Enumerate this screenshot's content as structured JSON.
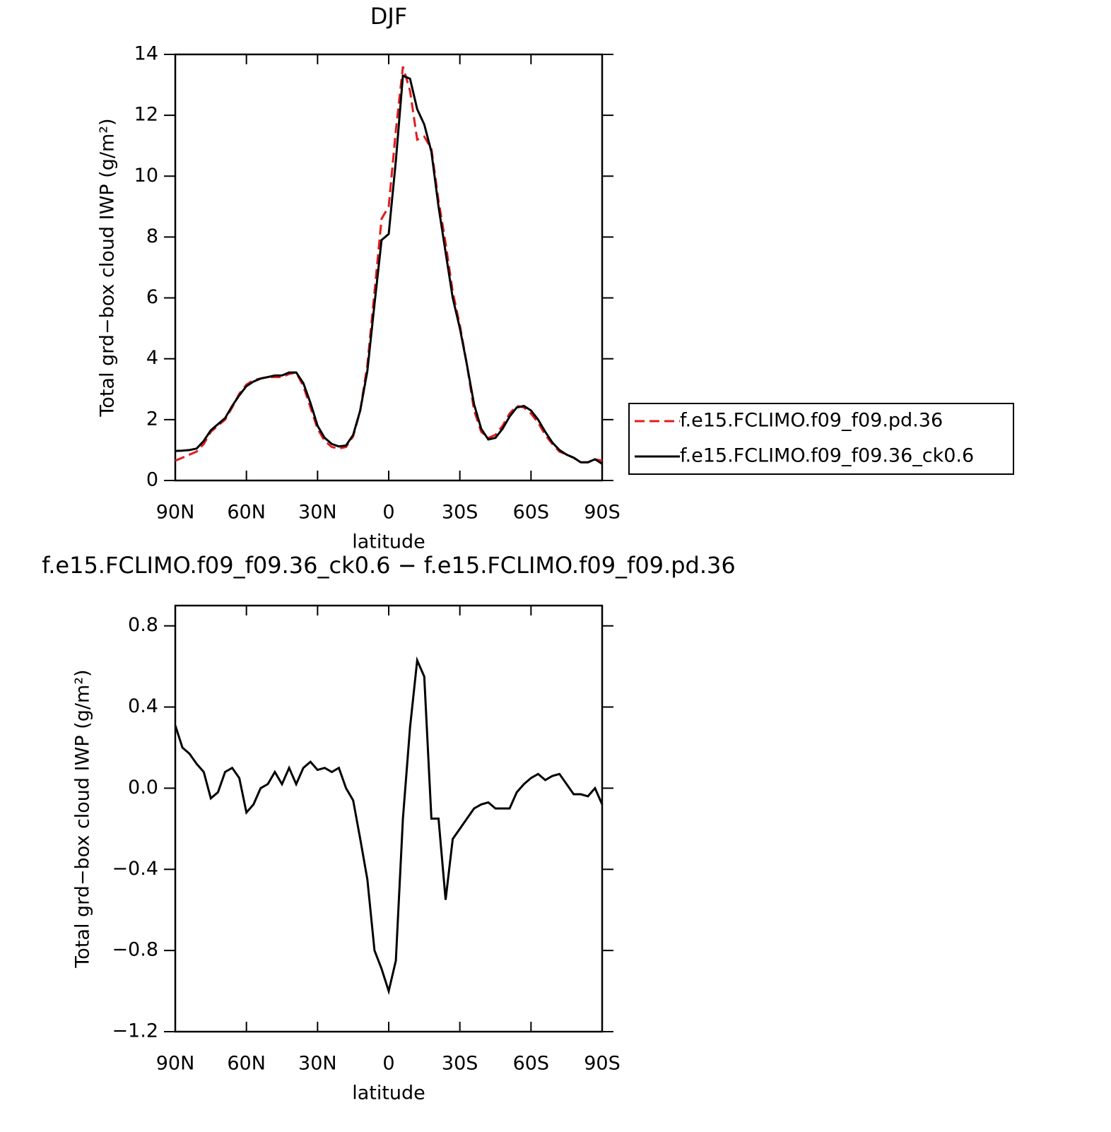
{
  "chart_data": [
    {
      "type": "line",
      "title": "DJF",
      "xlabel": "latitude",
      "ylabel": "Total grd−box cloud IWP (g/m²)",
      "x": [
        90,
        87,
        84,
        81,
        78,
        75,
        72,
        69,
        66,
        63,
        60,
        57,
        54,
        51,
        48,
        45,
        42,
        39,
        36,
        33,
        30,
        27,
        24,
        21,
        18,
        15,
        12,
        9,
        6,
        3,
        0,
        -3,
        -6,
        -9,
        -12,
        -15,
        -18,
        -21,
        -24,
        -27,
        -30,
        -33,
        -36,
        -39,
        -42,
        -45,
        -48,
        -51,
        -54,
        -57,
        -60,
        -63,
        -66,
        -69,
        -72,
        -75,
        -78,
        -81,
        -84,
        -87,
        -90
      ],
      "series": [
        {
          "name": "f.e15.FCLIMO.f09_f09.pd.36",
          "color": "#e41a1c",
          "dash": true,
          "values": [
            0.65,
            0.75,
            0.85,
            0.95,
            1.2,
            1.6,
            1.8,
            2.0,
            2.4,
            2.85,
            3.15,
            3.3,
            3.35,
            3.4,
            3.4,
            3.4,
            3.5,
            3.55,
            3.1,
            2.4,
            1.7,
            1.3,
            1.1,
            1.05,
            1.1,
            1.45,
            2.3,
            3.8,
            6.2,
            8.6,
            9.0,
            11.5,
            13.6,
            12.8,
            11.2,
            11.3,
            10.9,
            9.2,
            7.8,
            6.2,
            5.1,
            3.8,
            2.3,
            1.6,
            1.4,
            1.5,
            1.8,
            2.2,
            2.45,
            2.4,
            2.2,
            1.9,
            1.5,
            1.2,
            0.95,
            0.85,
            0.75,
            0.6,
            0.6,
            0.7,
            0.65
          ]
        },
        {
          "name": "f.e15.FCLIMO.f09_f09.36_ck0.6",
          "color": "#000000",
          "dash": false,
          "values": [
            0.97,
            0.98,
            1.0,
            1.05,
            1.3,
            1.65,
            1.85,
            2.05,
            2.45,
            2.8,
            3.1,
            3.25,
            3.35,
            3.4,
            3.45,
            3.45,
            3.55,
            3.55,
            3.2,
            2.55,
            1.8,
            1.4,
            1.2,
            1.12,
            1.15,
            1.5,
            2.3,
            3.6,
            5.8,
            7.9,
            8.1,
            10.5,
            13.3,
            13.2,
            12.2,
            11.7,
            10.8,
            9.0,
            7.5,
            6.0,
            5.0,
            3.8,
            2.5,
            1.7,
            1.35,
            1.4,
            1.7,
            2.1,
            2.4,
            2.45,
            2.3,
            2.0,
            1.6,
            1.25,
            1.0,
            0.85,
            0.75,
            0.6,
            0.6,
            0.7,
            0.55
          ]
        }
      ],
      "xlim": [
        90,
        -90
      ],
      "xticks": [
        {
          "value": 90,
          "label": "90N"
        },
        {
          "value": 60,
          "label": "60N"
        },
        {
          "value": 30,
          "label": "30N"
        },
        0,
        {
          "value": -30,
          "label": "30S"
        },
        {
          "value": -60,
          "label": "60S"
        },
        {
          "value": -90,
          "label": "90S"
        }
      ],
      "ylim": [
        0,
        14
      ],
      "yticks": [
        0,
        2,
        4,
        6,
        8,
        10,
        12,
        14
      ],
      "legend": "right"
    },
    {
      "type": "line",
      "title": "f.e15.FCLIMO.f09_f09.36_ck0.6 − f.e15.FCLIMO.f09_f09.pd.36",
      "xlabel": "latitude",
      "ylabel": "Total grd−box cloud IWP (g/m²)",
      "x": [
        90,
        87,
        84,
        81,
        78,
        75,
        72,
        69,
        66,
        63,
        60,
        57,
        54,
        51,
        48,
        45,
        42,
        39,
        36,
        33,
        30,
        27,
        24,
        21,
        18,
        15,
        12,
        9,
        6,
        3,
        0,
        -3,
        -6,
        -9,
        -12,
        -15,
        -18,
        -21,
        -24,
        -27,
        -30,
        -33,
        -36,
        -39,
        -42,
        -45,
        -48,
        -51,
        -54,
        -57,
        -60,
        -63,
        -66,
        -69,
        -72,
        -75,
        -78,
        -81,
        -84,
        -87,
        -90
      ],
      "series": [
        {
          "color": "#000000",
          "dash": false,
          "values": [
            0.31,
            0.2,
            0.17,
            0.12,
            0.08,
            -0.05,
            -0.02,
            0.08,
            0.1,
            0.05,
            -0.12,
            -0.08,
            0.0,
            0.02,
            0.08,
            0.02,
            0.1,
            0.02,
            0.1,
            0.13,
            0.09,
            0.1,
            0.08,
            0.1,
            0.0,
            -0.06,
            -0.25,
            -0.45,
            -0.8,
            -0.89,
            -1.0,
            -0.85,
            -0.15,
            0.3,
            0.63,
            0.55,
            -0.15,
            -0.15,
            -0.55,
            -0.25,
            -0.2,
            -0.15,
            -0.1,
            -0.08,
            -0.07,
            -0.1,
            -0.1,
            -0.1,
            -0.02,
            0.02,
            0.05,
            0.07,
            0.04,
            0.06,
            0.07,
            0.02,
            -0.03,
            -0.03,
            -0.04,
            0.0,
            -0.08
          ]
        }
      ],
      "xlim": [
        90,
        -90
      ],
      "xticks": [
        {
          "value": 90,
          "label": "90N"
        },
        {
          "value": 60,
          "label": "60N"
        },
        {
          "value": 30,
          "label": "30N"
        },
        0,
        {
          "value": -30,
          "label": "30S"
        },
        {
          "value": -60,
          "label": "60S"
        },
        {
          "value": -90,
          "label": "90S"
        }
      ],
      "ylim": [
        -1.2,
        0.9
      ],
      "yticks": [
        {
          "value": -1.2,
          "label": "−1.2"
        },
        {
          "value": -0.8,
          "label": "−0.8"
        },
        {
          "value": -0.4,
          "label": "−0.4"
        },
        {
          "value": 0,
          "label": "0.0"
        },
        0.4,
        0.8
      ]
    }
  ]
}
